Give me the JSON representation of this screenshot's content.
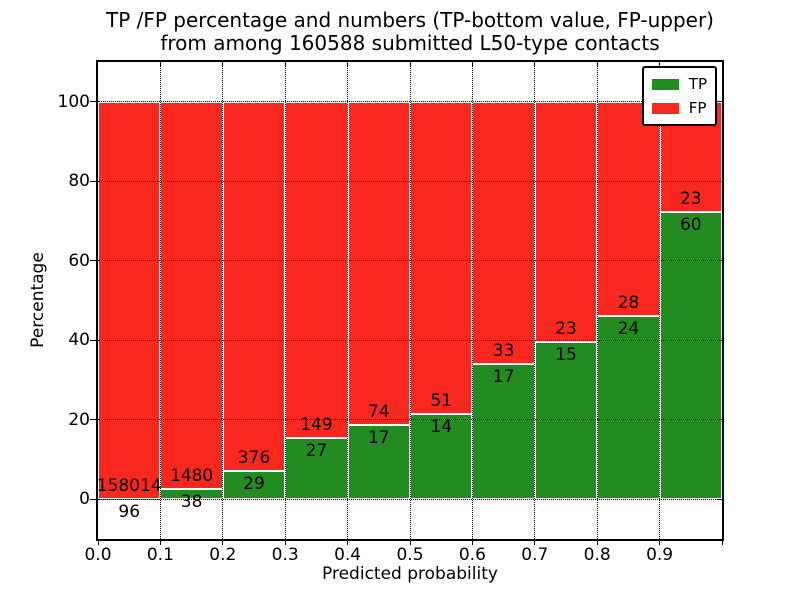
{
  "chart_data": {
    "type": "bar",
    "stacked": true,
    "title_line1": "TP /FP percentage and numbers (TP-bottom value, FP-upper)",
    "title_line2": "from among 160588 submitted L50-type contacts",
    "xlabel": "Predicted probability",
    "ylabel": "Percentage",
    "xlim": [
      0.0,
      1.0
    ],
    "ylim": [
      -10,
      110
    ],
    "x_tick_labels": [
      "0.0",
      "0.1",
      "0.2",
      "0.3",
      "0.4",
      "0.5",
      "0.6",
      "0.7",
      "0.8",
      "0.9"
    ],
    "y_tick_values": [
      0,
      20,
      40,
      60,
      80,
      100
    ],
    "grid": true,
    "grid_style": "dotted",
    "legend_position": "upper right",
    "legend": [
      {
        "label": "TP",
        "color": "#228b22"
      },
      {
        "label": "FP",
        "color": "#f8281e"
      }
    ],
    "bins": [
      {
        "range": "0.0-0.1",
        "tp": 96,
        "fp": 158014,
        "tp_pct": 0.06
      },
      {
        "range": "0.1-0.2",
        "tp": 38,
        "fp": 1480,
        "tp_pct": 2.5
      },
      {
        "range": "0.2-0.3",
        "tp": 29,
        "fp": 376,
        "tp_pct": 7.16
      },
      {
        "range": "0.3-0.4",
        "tp": 27,
        "fp": 149,
        "tp_pct": 15.34
      },
      {
        "range": "0.4-0.5",
        "tp": 17,
        "fp": 74,
        "tp_pct": 18.68
      },
      {
        "range": "0.5-0.6",
        "tp": 14,
        "fp": 51,
        "tp_pct": 21.54
      },
      {
        "range": "0.6-0.7",
        "tp": 17,
        "fp": 33,
        "tp_pct": 34.0
      },
      {
        "range": "0.7-0.8",
        "tp": 15,
        "fp": 23,
        "tp_pct": 39.47
      },
      {
        "range": "0.8-0.9",
        "tp": 24,
        "fp": 28,
        "tp_pct": 46.15
      },
      {
        "range": "0.9-1.0",
        "tp": 60,
        "fp": 23,
        "tp_pct": 72.29
      }
    ],
    "colors": {
      "tp": "#228b22",
      "fp": "#f8281e",
      "grid": "#000000",
      "bar_edge": "#ffffff",
      "background": "#ffffff"
    }
  }
}
